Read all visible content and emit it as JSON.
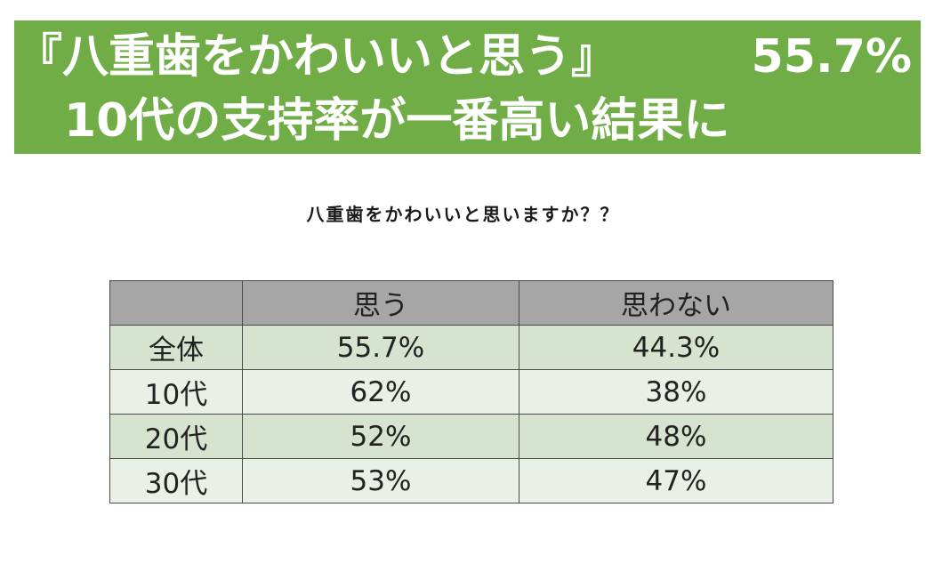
{
  "banner": {
    "line1": "『八重歯をかわいいと思う』",
    "line1_value": "55.7%",
    "line2": "10代の支持率が一番高い結果に",
    "background_color": "#70ad47"
  },
  "question": "八重歯をかわいいと思いますか？？",
  "chart_data": {
    "type": "table",
    "title": "八重歯をかわいいと思いますか？？",
    "columns": [
      "",
      "思う",
      "思わない"
    ],
    "rows": [
      {
        "label": "全体",
        "values": [
          "55.7%",
          "44.3%"
        ]
      },
      {
        "label": "10代",
        "values": [
          "62%",
          "38%"
        ]
      },
      {
        "label": "20代",
        "values": [
          "52%",
          "48%"
        ]
      },
      {
        "label": "30代",
        "values": [
          "53%",
          "47%"
        ]
      }
    ],
    "numeric_values": {
      "全体": [
        55.7,
        44.3
      ],
      "10代": [
        62,
        38
      ],
      "20代": [
        52,
        48
      ],
      "30代": [
        53,
        47
      ]
    },
    "colors": {
      "header": "#a6a6a6",
      "row_shade": "#d5e3cf",
      "row_light": "#eaf0e7"
    }
  }
}
